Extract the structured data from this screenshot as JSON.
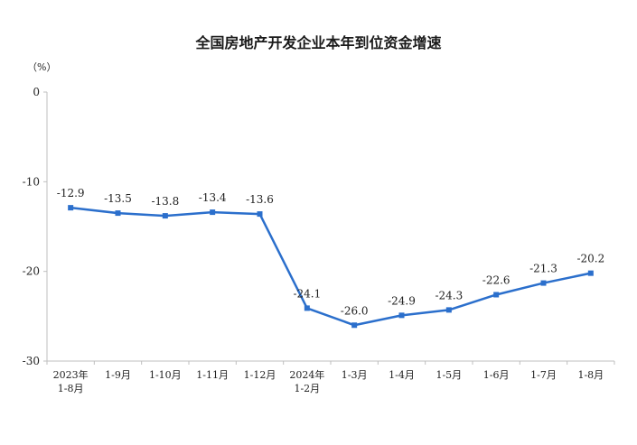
{
  "chart_data": {
    "type": "line",
    "title": "全国房地产开发企业本年到位资金增速",
    "ylabel": "（%）",
    "xlabel": "",
    "ylim": [
      -30,
      0
    ],
    "yticks": [
      0,
      -10,
      -20,
      -30
    ],
    "grid": false,
    "legend": "none",
    "categories": [
      [
        "2023年",
        "1-8月"
      ],
      [
        "1-9月"
      ],
      [
        "1-10月"
      ],
      [
        "1-11月"
      ],
      [
        "1-12月"
      ],
      [
        "2024年",
        "1-2月"
      ],
      [
        "1-3月"
      ],
      [
        "1-4月"
      ],
      [
        "1-5月"
      ],
      [
        "1-6月"
      ],
      [
        "1-7月"
      ],
      [
        "1-8月"
      ]
    ],
    "series": [
      {
        "values": [
          -12.9,
          -13.5,
          -13.8,
          -13.4,
          -13.6,
          -24.1,
          -26.0,
          -24.9,
          -24.3,
          -22.6,
          -21.3,
          -20.2
        ],
        "labels": [
          "-12.9",
          "-13.5",
          "-13.8",
          "-13.4",
          "-13.6",
          "-24.1",
          "-26.0",
          "-24.9",
          "-24.3",
          "-22.6",
          "-21.3",
          "-20.2"
        ],
        "color": "#2b6fcc"
      }
    ]
  }
}
